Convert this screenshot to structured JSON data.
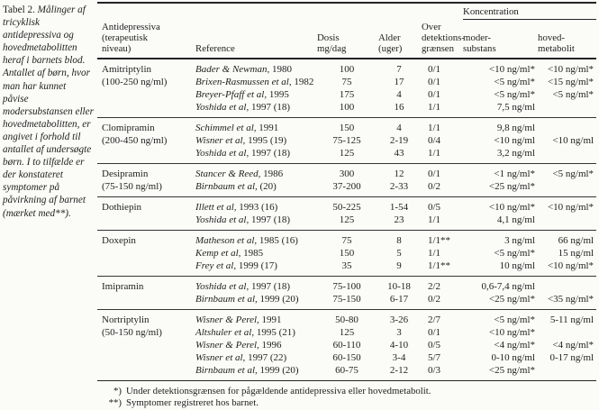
{
  "ink_color": "#1e1e1e",
  "paper_color": "#fbfbf8",
  "caption": {
    "label": "Tabel 2.",
    "text": "Målinger af tricyklisk antidepressiva og hovedmetabolitten heraf i barnets blod. Antallet af børn, hvor man har kunnet påvise modersubstansen eller hovedmetabolitten, er angivet i forhold til antallet af undersøgte børn. I to tilfælde er der konstateret symptomer på påvirkning af barnet (mærket med**)."
  },
  "table": {
    "headers": {
      "drug": "Antidepressiva\n(terapeutisk\nniveau)",
      "reference": "Reference",
      "dose": "Dosis\nmg/dag",
      "age": "Alder\n(uger)",
      "detection": "Over\ndetektions-\ngrænsen",
      "concentration": "Koncentration",
      "mother": "moder-\nsubstans",
      "metabolite": "hoved-\nmetabolit"
    },
    "groups": [
      {
        "drug": "Amitriptylin",
        "level": "(100-250 ng/ml)",
        "rows": [
          {
            "authors": "Bader & Newman,",
            "year": "1980",
            "dose": "100",
            "age": "7",
            "detected": "0/1",
            "mother": "<10 ng/ml*",
            "metabolite": "<10 ng/ml*"
          },
          {
            "authors": "Brixen-Rasmussen et al,",
            "year": "1982",
            "dose": "75",
            "age": "17",
            "detected": "0/1",
            "mother": "<5 ng/ml*",
            "metabolite": "<15 ng/ml*"
          },
          {
            "authors": "Breyer-Pfaff et al,",
            "year": "1995",
            "dose": "175",
            "age": "4",
            "detected": "0/1",
            "mother": "<5 ng/ml*",
            "metabolite": "<5 ng/ml*"
          },
          {
            "authors": "Yoshida et al,",
            "year": "1997 (18)",
            "dose": "100",
            "age": "16",
            "detected": "1/1",
            "mother": "7,5 ng/ml",
            "metabolite": ""
          }
        ]
      },
      {
        "drug": "Clomipramin",
        "level": "(200-450 ng/ml)",
        "rows": [
          {
            "authors": "Schimmel et al,",
            "year": "1991",
            "dose": "150",
            "age": "4",
            "detected": "1/1",
            "mother": "9,8 ng/ml",
            "metabolite": ""
          },
          {
            "authors": "Wisner et al,",
            "year": "1995 (19)",
            "dose": "75-125",
            "age": "2-19",
            "detected": "0/4",
            "mother": "<10 ng/ml",
            "metabolite": "<10 ng/ml"
          },
          {
            "authors": "Yoshida et al,",
            "year": "1997 (18)",
            "dose": "125",
            "age": "43",
            "detected": "1/1",
            "mother": "3,2 ng/ml",
            "metabolite": ""
          }
        ]
      },
      {
        "drug": "Desipramin",
        "level": "(75-150 ng/ml)",
        "rows": [
          {
            "authors": "Stancer & Reed,",
            "year": "1986",
            "dose": "300",
            "age": "12",
            "detected": "0/1",
            "mother": "<1 ng/ml*",
            "metabolite": "<5 ng/ml*"
          },
          {
            "authors": "Birnbaum et al,",
            "year": "(20)",
            "dose": "37-200",
            "age": "2-33",
            "detected": "0/2",
            "mother": "<25 ng/ml*",
            "metabolite": ""
          }
        ]
      },
      {
        "drug": "Dothiepin",
        "level": "",
        "rows": [
          {
            "authors": "Illett et al,",
            "year": "1993 (16)",
            "dose": "50-225",
            "age": "1-54",
            "detected": "0/5",
            "mother": "<10 ng/ml*",
            "metabolite": "<10 ng/ml*"
          },
          {
            "authors": "Yoshida et al,",
            "year": "1997 (18)",
            "dose": "125",
            "age": "23",
            "detected": "1/1",
            "mother": "4,1 ng/ml",
            "metabolite": ""
          }
        ]
      },
      {
        "drug": "Doxepin",
        "level": "",
        "rows": [
          {
            "authors": "Matheson et al,",
            "year": "1985 (16)",
            "dose": "75",
            "age": "8",
            "detected": "1/1**",
            "mother": "3 ng/ml",
            "metabolite": "66 ng/ml"
          },
          {
            "authors": "Kemp et al,",
            "year": "1985",
            "dose": "150",
            "age": "5",
            "detected": "1/1",
            "mother": "<5 ng/ml*",
            "metabolite": "15 ng/ml"
          },
          {
            "authors": "Frey et al,",
            "year": "1999 (17)",
            "dose": "35",
            "age": "9",
            "detected": "1/1**",
            "mother": "10 ng/ml",
            "metabolite": "<10 ng/ml*"
          }
        ]
      },
      {
        "drug": "Imipramin",
        "level": "",
        "rows": [
          {
            "authors": "Yoshida et al,",
            "year": "1997 (18)",
            "dose": "75-100",
            "age": "10-18",
            "detected": "2/2",
            "mother": "0,6-7,4 ng/ml",
            "metabolite": ""
          },
          {
            "authors": "Birnbaum et al,",
            "year": "1999 (20)",
            "dose": "75-150",
            "age": "6-17",
            "detected": "0/2",
            "mother": "<25 ng/ml*",
            "metabolite": "<35 ng/ml*"
          }
        ]
      },
      {
        "drug": "Nortriptylin",
        "level": "(50-150 ng/ml)",
        "rows": [
          {
            "authors": "Wisner & Perel,",
            "year": "1991",
            "dose": "50-80",
            "age": "3-26",
            "detected": "2/7",
            "mother": "<5 ng/ml*",
            "metabolite": "5-11 ng/ml"
          },
          {
            "authors": "Altshuler et al,",
            "year": "1995 (21)",
            "dose": "125",
            "age": "3",
            "detected": "0/1",
            "mother": "<10 ng/ml*",
            "metabolite": ""
          },
          {
            "authors": "Wisner & Perel,",
            "year": "1996",
            "dose": "60-110",
            "age": "4-10",
            "detected": "0/5",
            "mother": "<4 ng/ml*",
            "metabolite": "<4 ng/ml*"
          },
          {
            "authors": "Wisner et al,",
            "year": "1997 (22)",
            "dose": "60-150",
            "age": "3-4",
            "detected": "5/7",
            "mother": "0-10 ng/ml",
            "metabolite": "0-17 ng/ml"
          },
          {
            "authors": "Birnbaum et al,",
            "year": "1999 (20)",
            "dose": "60-75",
            "age": "2-12",
            "detected": "0/3",
            "mother": "<25 ng/ml*",
            "metabolite": ""
          }
        ]
      }
    ],
    "footnotes": [
      {
        "marker": "*)",
        "text": "Under detektionsgrænsen for pågældende antidepressiva eller hovedmetabolit."
      },
      {
        "marker": "**)",
        "text": "Symptomer registreret hos barnet."
      }
    ]
  }
}
